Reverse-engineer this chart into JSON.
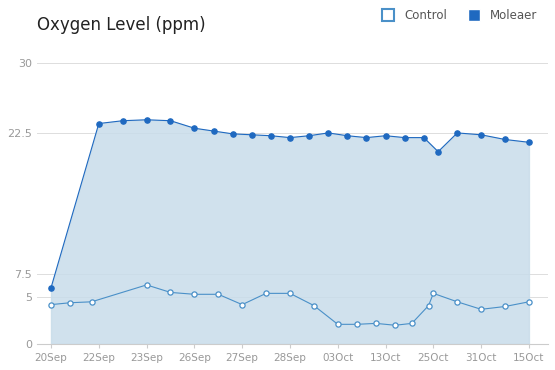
{
  "title": "Oxygen Level (ppm)",
  "x_labels": [
    "20Sep",
    "22Sep",
    "23Sep",
    "26Sep",
    "27Sep",
    "28Sep",
    "03Oct",
    "13Oct",
    "25Oct",
    "31Oct",
    "15Oct"
  ],
  "ylim": [
    0,
    32
  ],
  "yticks": [
    0,
    5,
    7.5,
    22.5,
    30
  ],
  "ytick_labels": [
    "0",
    "5",
    "7.5",
    "22.5",
    "30"
  ],
  "fill_color": "#c8dcea",
  "moleaer_color": "#1f69c0",
  "control_edge_color": "#4a90c8",
  "bg_color": "#ffffff",
  "legend_control_label": "Control",
  "legend_moleaer_label": "Moleaer",
  "control_x": [
    0,
    0.4,
    0.85,
    2.0,
    2.5,
    3.0,
    3.5,
    4.0,
    4.5,
    5.0,
    5.5,
    6.0,
    6.4,
    6.8,
    7.2,
    7.55,
    7.9,
    8.0,
    8.5,
    9.0,
    9.5,
    10.0
  ],
  "control_y": [
    4.2,
    4.4,
    4.5,
    6.3,
    5.5,
    5.3,
    5.3,
    4.2,
    5.4,
    5.4,
    4.1,
    2.1,
    2.1,
    2.2,
    2.0,
    2.2,
    4.1,
    5.4,
    4.5,
    3.7,
    4.0,
    4.5
  ],
  "moleaer_x": [
    0,
    1.0,
    1.5,
    2.0,
    2.5,
    3.0,
    3.4,
    3.8,
    4.2,
    4.6,
    5.0,
    5.4,
    5.8,
    6.2,
    6.6,
    7.0,
    7.4,
    7.8,
    8.1,
    8.5,
    9.0,
    9.5,
    10.0
  ],
  "moleaer_y": [
    6.0,
    23.5,
    23.8,
    23.9,
    23.8,
    23.0,
    22.7,
    22.4,
    22.3,
    22.2,
    22.0,
    22.2,
    22.5,
    22.2,
    22.0,
    22.2,
    22.0,
    22.0,
    20.5,
    22.5,
    22.3,
    21.8,
    21.5
  ],
  "fill_x": [
    0,
    1.0,
    1.5,
    2.0,
    2.5,
    3.0,
    3.4,
    3.8,
    4.2,
    4.6,
    5.0,
    5.4,
    5.8,
    6.2,
    6.6,
    7.0,
    7.4,
    7.8,
    8.1,
    8.5,
    9.0,
    9.5,
    10.0
  ],
  "fill_upper": [
    6.0,
    23.5,
    23.8,
    23.9,
    23.8,
    23.0,
    22.7,
    22.4,
    22.3,
    22.2,
    22.0,
    22.2,
    22.5,
    22.2,
    22.0,
    22.2,
    22.0,
    22.0,
    20.5,
    22.5,
    22.3,
    21.8,
    21.5
  ]
}
